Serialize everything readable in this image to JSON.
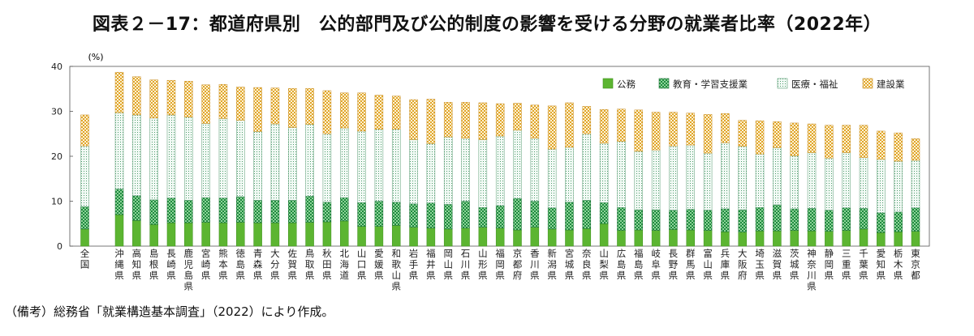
{
  "chart_data": {
    "type": "bar",
    "stacked": true,
    "title": "図表２－17：都道府県別　公的部門及び公的制度の影響を受ける分野の就業者比率（2022年）",
    "ylabel": "(%)",
    "ylim": [
      0,
      40
    ],
    "yticks": [
      0,
      10,
      20,
      30,
      40
    ],
    "grid": false,
    "legend_position": "top-right",
    "categories": [
      "全国",
      "沖縄県",
      "高知県",
      "島根県",
      "長崎県",
      "鹿児島県",
      "宮崎県",
      "熊本県",
      "徳島県",
      "青森県",
      "大分県",
      "佐賀県",
      "鳥取県",
      "秋田県",
      "北海道",
      "山口県",
      "愛媛県",
      "和歌山県",
      "岩手県",
      "福井県",
      "岡山県",
      "石川県",
      "山形県",
      "福岡県",
      "京都府",
      "香川県",
      "新潟県",
      "宮城県",
      "奈良県",
      "山梨県",
      "広島県",
      "福島県",
      "岐阜県",
      "長野県",
      "群馬県",
      "富山県",
      "兵庫県",
      "大阪府",
      "埼玉県",
      "滋賀県",
      "茨城県",
      "神奈川県",
      "静岡県",
      "三重県",
      "千葉県",
      "愛知県",
      "栃木県",
      "東京都"
    ],
    "series": [
      {
        "name": "公務",
        "color": "#5cb531",
        "pattern": "solid",
        "values": [
          3.8,
          7.0,
          5.7,
          4.8,
          5.2,
          5.2,
          5.3,
          5.2,
          5.3,
          5.2,
          5.2,
          5.2,
          5.3,
          5.4,
          5.6,
          4.4,
          4.4,
          4.6,
          4.2,
          4.0,
          3.8,
          4.0,
          4.2,
          4.0,
          3.6,
          4.2,
          3.8,
          3.6,
          3.9,
          5.0,
          3.5,
          3.6,
          3.5,
          3.7,
          3.6,
          3.5,
          3.2,
          3.1,
          3.4,
          3.4,
          3.5,
          3.4,
          3.3,
          3.5,
          3.8,
          3.0,
          3.2,
          3.3
        ]
      },
      {
        "name": "教育・学習支援業",
        "color": "#2fa050",
        "pattern": "checker",
        "values": [
          5.0,
          5.7,
          5.5,
          5.5,
          5.5,
          5.0,
          5.5,
          5.5,
          5.7,
          5.0,
          5.0,
          5.0,
          5.8,
          4.4,
          5.2,
          5.3,
          5.6,
          5.2,
          5.2,
          5.6,
          5.5,
          6.0,
          4.4,
          5.0,
          7.0,
          5.8,
          4.7,
          6.2,
          6.3,
          4.7,
          5.1,
          4.5,
          4.6,
          4.3,
          4.6,
          4.5,
          5.1,
          5.0,
          5.2,
          5.8,
          4.8,
          5.0,
          4.7,
          5.0,
          4.6,
          4.4,
          4.4,
          5.2
        ]
      },
      {
        "name": "医療・福祉",
        "color": "#7dbf9a",
        "pattern": "dotted",
        "values": [
          13.5,
          17.0,
          18.0,
          18.2,
          18.5,
          18.5,
          16.5,
          17.7,
          17.0,
          15.3,
          17.0,
          16.2,
          16.0,
          15.2,
          15.5,
          15.9,
          16.0,
          16.2,
          14.3,
          13.2,
          15.0,
          14.0,
          15.1,
          15.5,
          15.2,
          14.0,
          13.1,
          12.2,
          14.8,
          13.2,
          14.7,
          13.0,
          13.3,
          14.3,
          14.3,
          12.7,
          14.7,
          14.1,
          11.9,
          12.7,
          11.8,
          12.4,
          11.6,
          12.3,
          11.3,
          11.9,
          11.3,
          10.6
        ]
      },
      {
        "name": "建設業",
        "color": "#e8b54a",
        "pattern": "checker",
        "values": [
          6.9,
          9.0,
          8.5,
          8.5,
          7.7,
          8.0,
          8.6,
          7.6,
          7.4,
          9.8,
          8.0,
          8.7,
          8.0,
          9.6,
          7.8,
          8.5,
          7.6,
          7.4,
          8.9,
          9.9,
          7.7,
          8.0,
          8.2,
          7.2,
          6.0,
          7.4,
          9.6,
          9.9,
          6.1,
          7.5,
          7.2,
          9.2,
          8.4,
          7.5,
          7.1,
          8.6,
          6.5,
          5.8,
          7.4,
          5.8,
          7.3,
          6.4,
          7.3,
          6.1,
          7.2,
          6.3,
          6.3,
          4.8
        ]
      }
    ]
  },
  "note": "（備考）総務省「就業構造基本調査」（2022）により作成。"
}
